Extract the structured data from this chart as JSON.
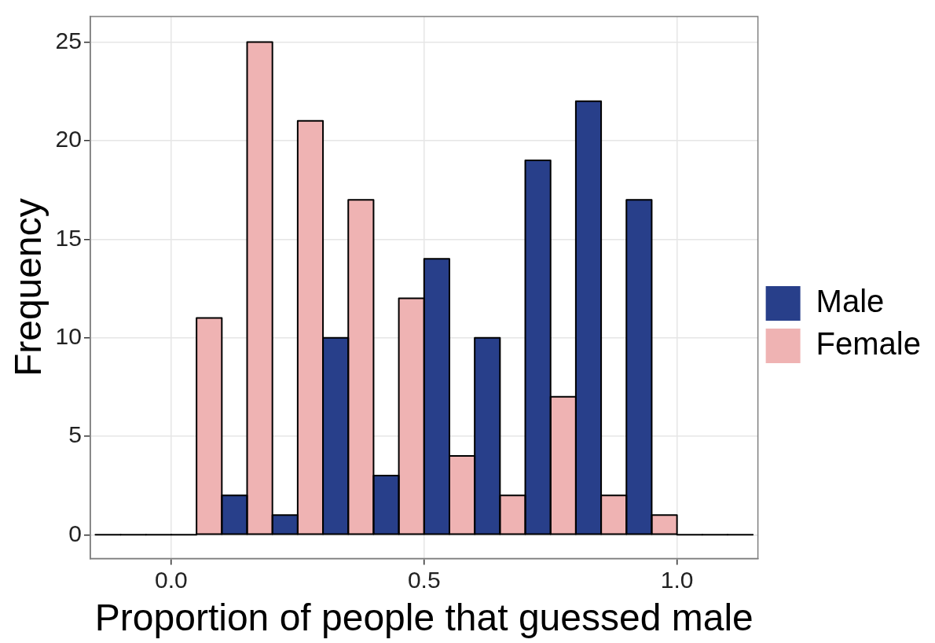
{
  "chart_data": {
    "type": "histogram",
    "xlabel": "Proportion of people that guessed male",
    "ylabel": "Frequency",
    "bins": [
      -0.15,
      -0.05,
      0.05,
      0.15,
      0.25,
      0.35,
      0.45,
      0.55,
      0.65,
      0.75,
      0.85,
      0.95,
      1.05,
      1.15
    ],
    "series": [
      {
        "name": "Female",
        "color": "#efb3b3",
        "values": [
          0,
          0,
          11,
          25,
          21,
          17,
          12,
          4,
          2,
          7,
          2,
          1,
          0
        ]
      },
      {
        "name": "Male",
        "color": "#283f8a",
        "values": [
          0,
          0,
          2,
          1,
          10,
          3,
          14,
          10,
          19,
          22,
          17,
          0,
          0
        ]
      }
    ],
    "xlim": [
      -0.16,
      1.16
    ],
    "xticks": [
      {
        "value": 0,
        "label": "0.0"
      },
      0.5,
      {
        "value": 1,
        "label": "1.0"
      }
    ],
    "ylim": [
      -1.2,
      26.3
    ],
    "yticks": [
      0,
      5,
      10,
      15,
      20,
      25
    ],
    "grid": true,
    "legend": "right"
  }
}
